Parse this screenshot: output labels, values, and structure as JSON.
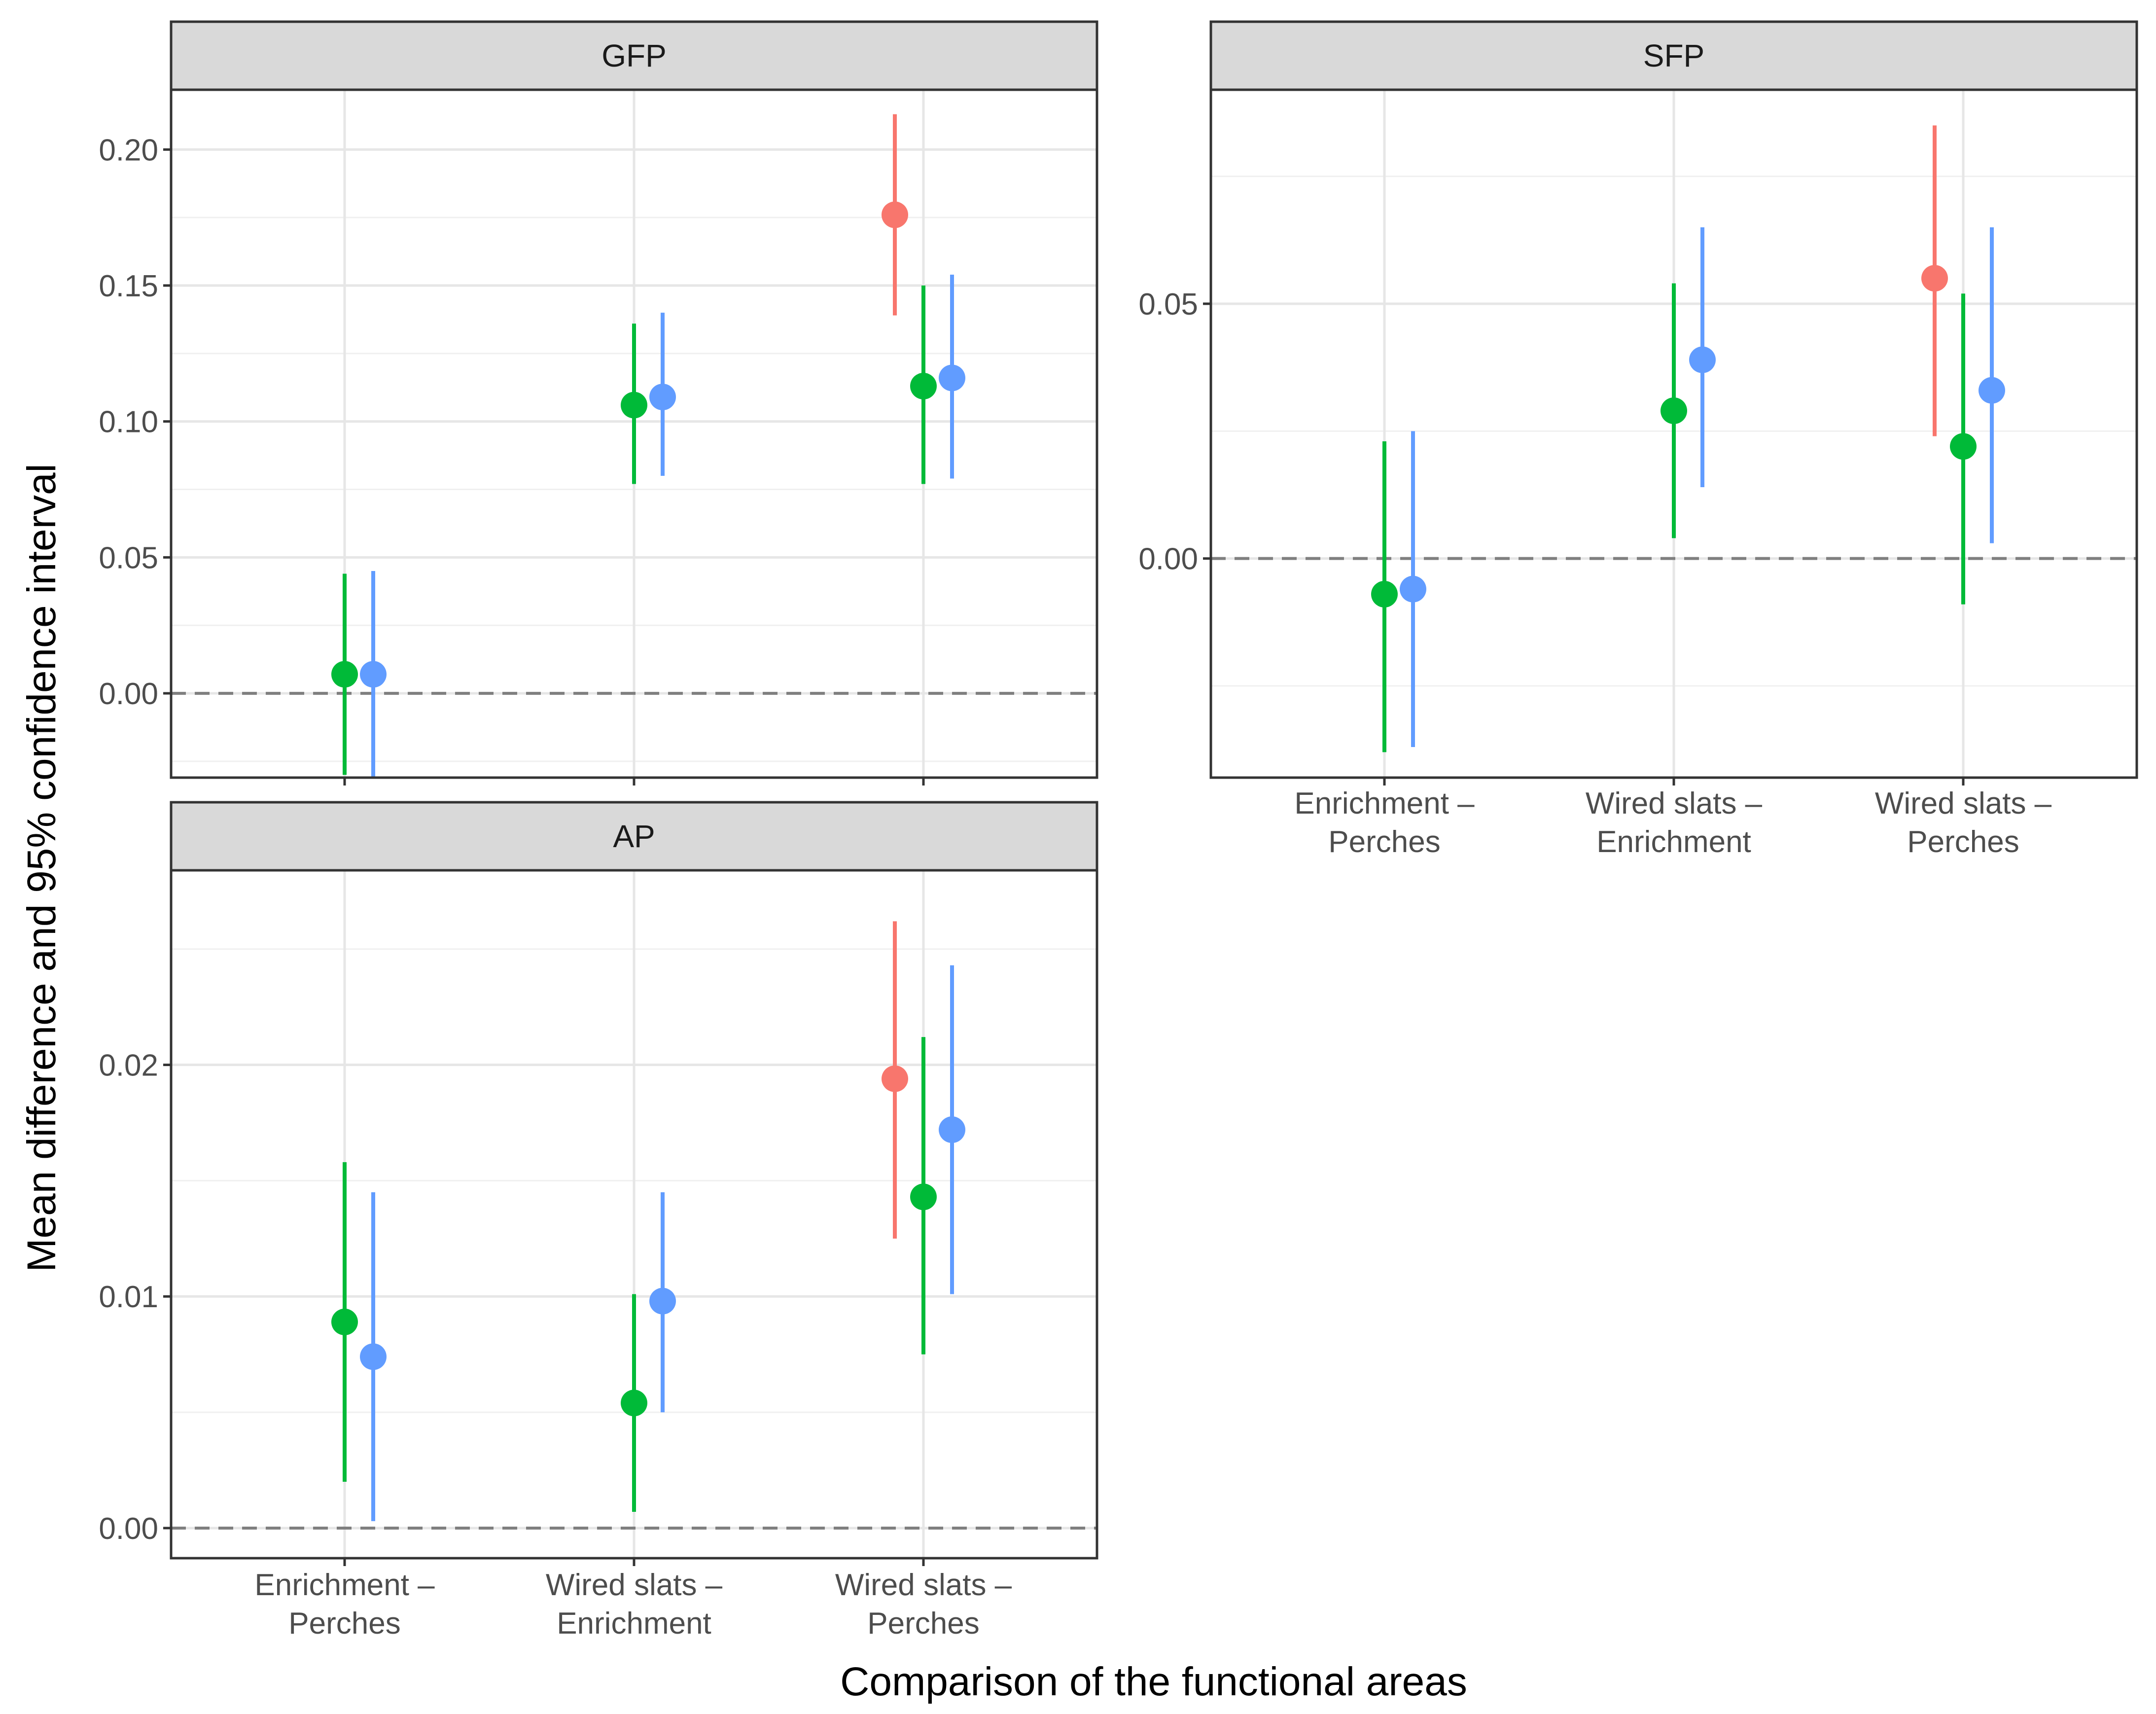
{
  "chart_data": {
    "type": "scatter",
    "subtype": "point-range (mean with 95% confidence interval), faceted",
    "xlabel": "Comparison of the functional areas",
    "ylabel": "Mean difference and 95% confidence interval",
    "categories": [
      [
        "Enrichment –",
        "Perches"
      ],
      [
        "Wired slats –",
        "Enrichment"
      ],
      [
        "Wired slats –",
        "Perches"
      ]
    ],
    "series_colors": [
      "#F8766D",
      "#00BA38",
      "#619CFF"
    ],
    "legend": "none",
    "grid": true,
    "reference_line": 0,
    "panels": [
      {
        "strip": "GFP",
        "ylim": [
          -0.031,
          0.222
        ],
        "yticks": [
          "0.00",
          "0.05",
          "0.10",
          "0.15",
          "0.20"
        ],
        "ytick_values": [
          0,
          0.05,
          0.1,
          0.15,
          0.2
        ],
        "show_x_labels": false,
        "points": [
          {
            "category": 0,
            "series": 1,
            "mean": 0.007,
            "lower": -0.03,
            "upper": 0.044
          },
          {
            "category": 0,
            "series": 2,
            "mean": 0.007,
            "lower": -0.031,
            "upper": 0.045
          },
          {
            "category": 1,
            "series": 1,
            "mean": 0.106,
            "lower": 0.077,
            "upper": 0.136
          },
          {
            "category": 1,
            "series": 2,
            "mean": 0.109,
            "lower": 0.08,
            "upper": 0.14
          },
          {
            "category": 2,
            "series": 0,
            "mean": 0.176,
            "lower": 0.139,
            "upper": 0.213
          },
          {
            "category": 2,
            "series": 1,
            "mean": 0.113,
            "lower": 0.077,
            "upper": 0.15
          },
          {
            "category": 2,
            "series": 2,
            "mean": 0.116,
            "lower": 0.079,
            "upper": 0.154
          }
        ]
      },
      {
        "strip": "SFP",
        "ylim": [
          -0.043,
          0.092
        ],
        "yticks": [
          "0.00",
          "0.05"
        ],
        "ytick_values": [
          0,
          0.05
        ],
        "show_x_labels": true,
        "points": [
          {
            "category": 0,
            "series": 1,
            "mean": -0.007,
            "lower": -0.038,
            "upper": 0.023
          },
          {
            "category": 0,
            "series": 2,
            "mean": -0.006,
            "lower": -0.037,
            "upper": 0.025
          },
          {
            "category": 1,
            "series": 1,
            "mean": 0.029,
            "lower": 0.004,
            "upper": 0.054
          },
          {
            "category": 1,
            "series": 2,
            "mean": 0.039,
            "lower": 0.014,
            "upper": 0.065
          },
          {
            "category": 2,
            "series": 0,
            "mean": 0.055,
            "lower": 0.024,
            "upper": 0.085
          },
          {
            "category": 2,
            "series": 1,
            "mean": 0.022,
            "lower": -0.009,
            "upper": 0.052
          },
          {
            "category": 2,
            "series": 2,
            "mean": 0.033,
            "lower": 0.003,
            "upper": 0.065
          }
        ]
      },
      {
        "strip": "AP",
        "ylim": [
          -0.0013,
          0.0284
        ],
        "yticks": [
          "0.00",
          "0.01",
          "0.02"
        ],
        "ytick_values": [
          0,
          0.01,
          0.02
        ],
        "show_x_labels": true,
        "points": [
          {
            "category": 0,
            "series": 1,
            "mean": 0.0089,
            "lower": 0.002,
            "upper": 0.0158
          },
          {
            "category": 0,
            "series": 2,
            "mean": 0.0074,
            "lower": 0.0003,
            "upper": 0.0145
          },
          {
            "category": 1,
            "series": 1,
            "mean": 0.0054,
            "lower": 0.0007,
            "upper": 0.0101
          },
          {
            "category": 1,
            "series": 2,
            "mean": 0.0098,
            "lower": 0.005,
            "upper": 0.0145
          },
          {
            "category": 2,
            "series": 0,
            "mean": 0.0194,
            "lower": 0.0125,
            "upper": 0.0262
          },
          {
            "category": 2,
            "series": 1,
            "mean": 0.0143,
            "lower": 0.0075,
            "upper": 0.0212
          },
          {
            "category": 2,
            "series": 2,
            "mean": 0.0172,
            "lower": 0.0101,
            "upper": 0.0243
          }
        ]
      }
    ]
  }
}
